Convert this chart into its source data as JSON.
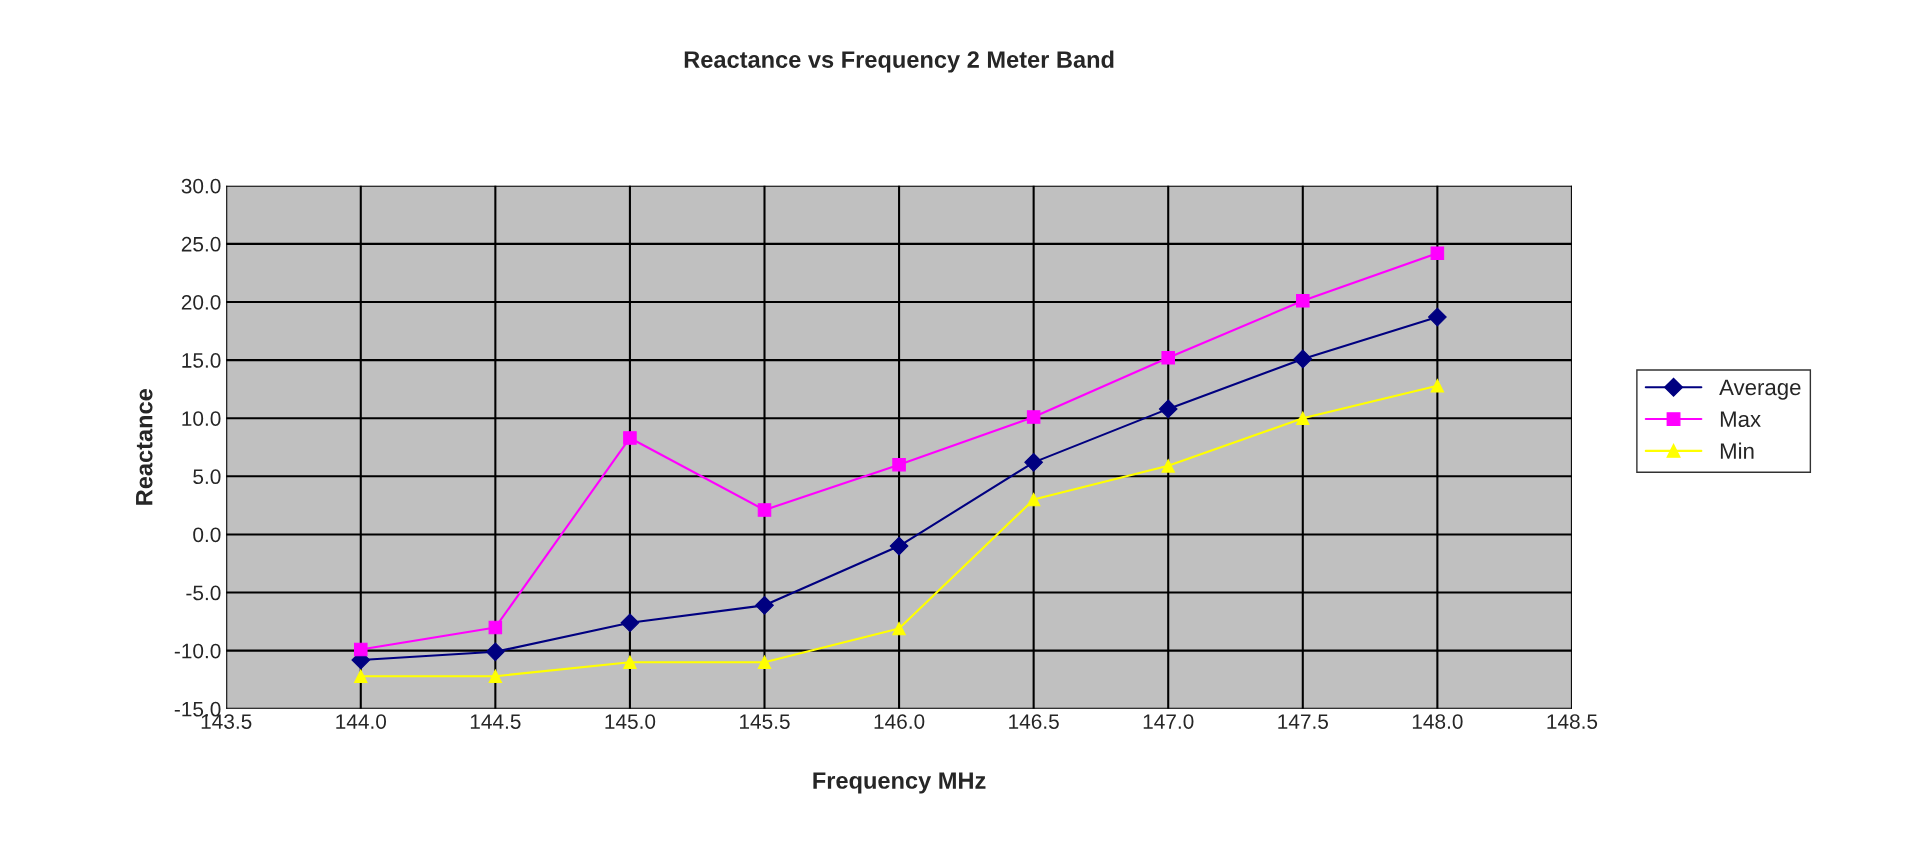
{
  "chart_data": {
    "type": "line",
    "title": "Reactance vs Frequency 2 Meter Band",
    "xlabel": "Frequency MHz",
    "ylabel": "Reactance",
    "x": [
      144.0,
      144.5,
      145.0,
      145.5,
      146.0,
      146.5,
      147.0,
      147.5,
      148.0
    ],
    "series": [
      {
        "name": "Average",
        "color": "#000080",
        "marker": "diamond",
        "values": [
          -10.8,
          -10.1,
          -7.6,
          -6.1,
          -1.0,
          6.2,
          10.8,
          15.1,
          18.7
        ]
      },
      {
        "name": "Max",
        "color": "#ff00ff",
        "marker": "square",
        "values": [
          -9.9,
          -8.0,
          8.3,
          2.1,
          6.0,
          10.1,
          15.2,
          20.1,
          24.2
        ]
      },
      {
        "name": "Min",
        "color": "#ffff00",
        "marker": "triangle",
        "values": [
          -12.2,
          -12.2,
          -11.0,
          -11.0,
          -8.1,
          3.0,
          5.9,
          10.0,
          12.8
        ]
      }
    ],
    "xlim": [
      143.5,
      148.5
    ],
    "xticks": [
      {
        "value": 143.5,
        "label": "143.5"
      },
      {
        "value": 144.0,
        "label": "144.0"
      },
      {
        "value": 144.5,
        "label": "144.5"
      },
      {
        "value": 145.0,
        "label": "145.0"
      },
      {
        "value": 145.5,
        "label": "145.5"
      },
      {
        "value": 146.0,
        "label": "146.0"
      },
      {
        "value": 146.5,
        "label": "146.5"
      },
      {
        "value": 147.0,
        "label": "147.0"
      },
      {
        "value": 147.5,
        "label": "147.5"
      },
      {
        "value": 148.0,
        "label": "148.0"
      },
      {
        "value": 148.5,
        "label": "148.5"
      }
    ],
    "ylim": [
      -15,
      30
    ],
    "yticks": [
      {
        "value": -15,
        "label": "-15.0"
      },
      {
        "value": -10,
        "label": "-10.0"
      },
      {
        "value": -5,
        "label": "-5.0"
      },
      {
        "value": 0,
        "label": "0.0"
      },
      {
        "value": 5,
        "label": "5.0"
      },
      {
        "value": 10,
        "label": "10.0"
      },
      {
        "value": 15,
        "label": "15.0"
      },
      {
        "value": 20,
        "label": "20.0"
      },
      {
        "value": 25,
        "label": "25.0"
      },
      {
        "value": 30,
        "label": "30.0"
      }
    ],
    "grid": true,
    "legend": "right",
    "line_style": "solid"
  }
}
